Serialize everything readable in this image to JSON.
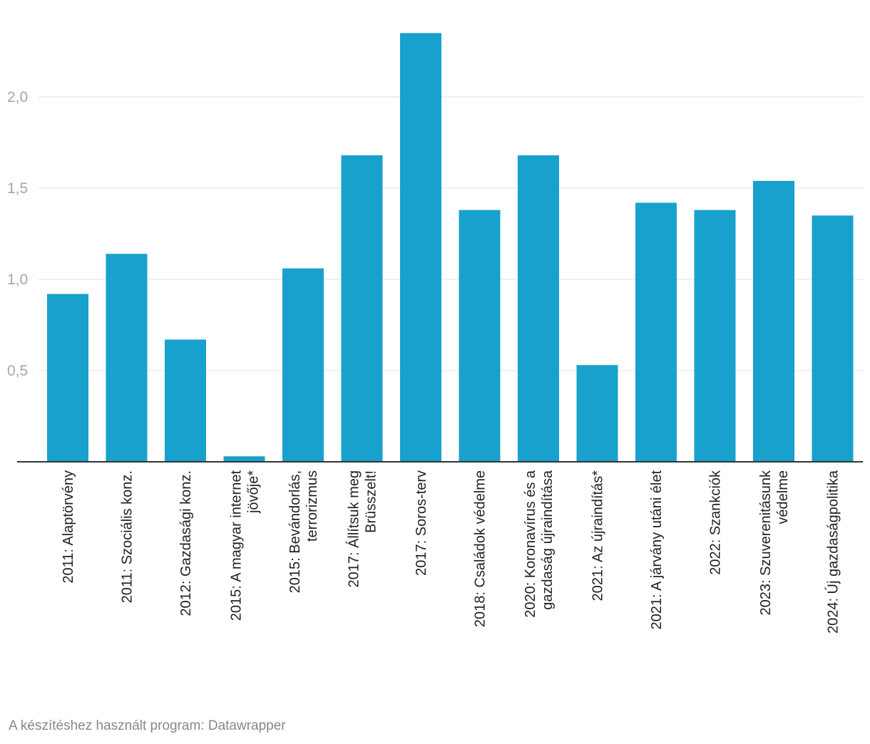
{
  "chart_data": {
    "type": "bar",
    "title": "",
    "xlabel": "",
    "ylabel": "",
    "categories": [
      [
        "2011: Alaptörvény"
      ],
      [
        "2011: Szociális konz."
      ],
      [
        "2012: Gazdasági konz."
      ],
      [
        "2015: A magyar internet",
        "jövője*"
      ],
      [
        "2015: Bevándorlás,",
        "terrorizmus"
      ],
      [
        "2017: Állítsuk meg",
        "Brüsszelt!"
      ],
      [
        "2017: Soros-terv"
      ],
      [
        "2018: Családok védelme"
      ],
      [
        "2020: Koronavírus és a",
        "gazdaság újraindítása"
      ],
      [
        "2021: Az újraindítás*"
      ],
      [
        "2021: A járvány utáni élet"
      ],
      [
        "2022: Szankciók"
      ],
      [
        "2023: Szuverenitásunk",
        "védelme"
      ],
      [
        "2024: Új gazdaságpolitika"
      ]
    ],
    "values": [
      0.92,
      1.14,
      0.67,
      0.03,
      1.06,
      1.68,
      2.35,
      1.38,
      1.68,
      0.53,
      1.42,
      1.38,
      1.54,
      1.35
    ],
    "ylim": [
      0,
      2.35
    ],
    "yticks": [
      0.5,
      1.0,
      1.5,
      2.0
    ],
    "ytick_labels": [
      "0,5",
      "1,0",
      "1,5",
      "2,0"
    ],
    "bar_color": "#18a1cd",
    "grid": true,
    "legend": "none"
  },
  "footer": {
    "credit": "A készítéshez használt program: Datawrapper"
  }
}
